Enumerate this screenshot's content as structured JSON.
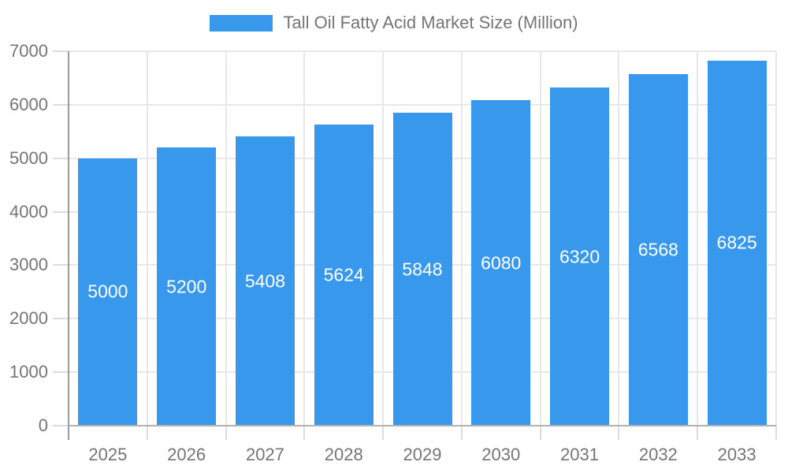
{
  "chart_data": {
    "type": "bar",
    "title": "Tall Oil Fatty Acid Market Size (Million)",
    "series_name": "Tall Oil Fatty Acid Market Size (Million)",
    "categories": [
      "2025",
      "2026",
      "2027",
      "2028",
      "2029",
      "2030",
      "2031",
      "2032",
      "2033"
    ],
    "values": [
      5000,
      5200,
      5408,
      5624,
      5848,
      6080,
      6320,
      6568,
      6825
    ],
    "bar_value_labels": [
      "5000",
      "5200",
      "5408",
      "5624",
      "5848",
      "6080",
      "6320",
      "6568",
      "6825"
    ],
    "xlabel": "",
    "ylabel": "",
    "ylim": [
      0,
      7000
    ],
    "yticks": [
      0,
      1000,
      2000,
      3000,
      4000,
      5000,
      6000,
      7000
    ],
    "ytick_labels": [
      "0",
      "1000",
      "2000",
      "3000",
      "4000",
      "5000",
      "6000",
      "7000"
    ],
    "grid": true,
    "legend_position": "top",
    "colors": {
      "bar": "#3899EC",
      "bar_label_text": "#ffffff",
      "axis_text": "#757575",
      "axis_line": "#9a9a9a",
      "baseline": "#b2b2b2",
      "gridline": "#e8e8e8",
      "tick": "#dcdcdc",
      "background": "#ffffff"
    }
  },
  "legend": {
    "label": "Tall Oil Fatty Acid Market Size (Million)",
    "swatch_color": "#3899EC"
  }
}
